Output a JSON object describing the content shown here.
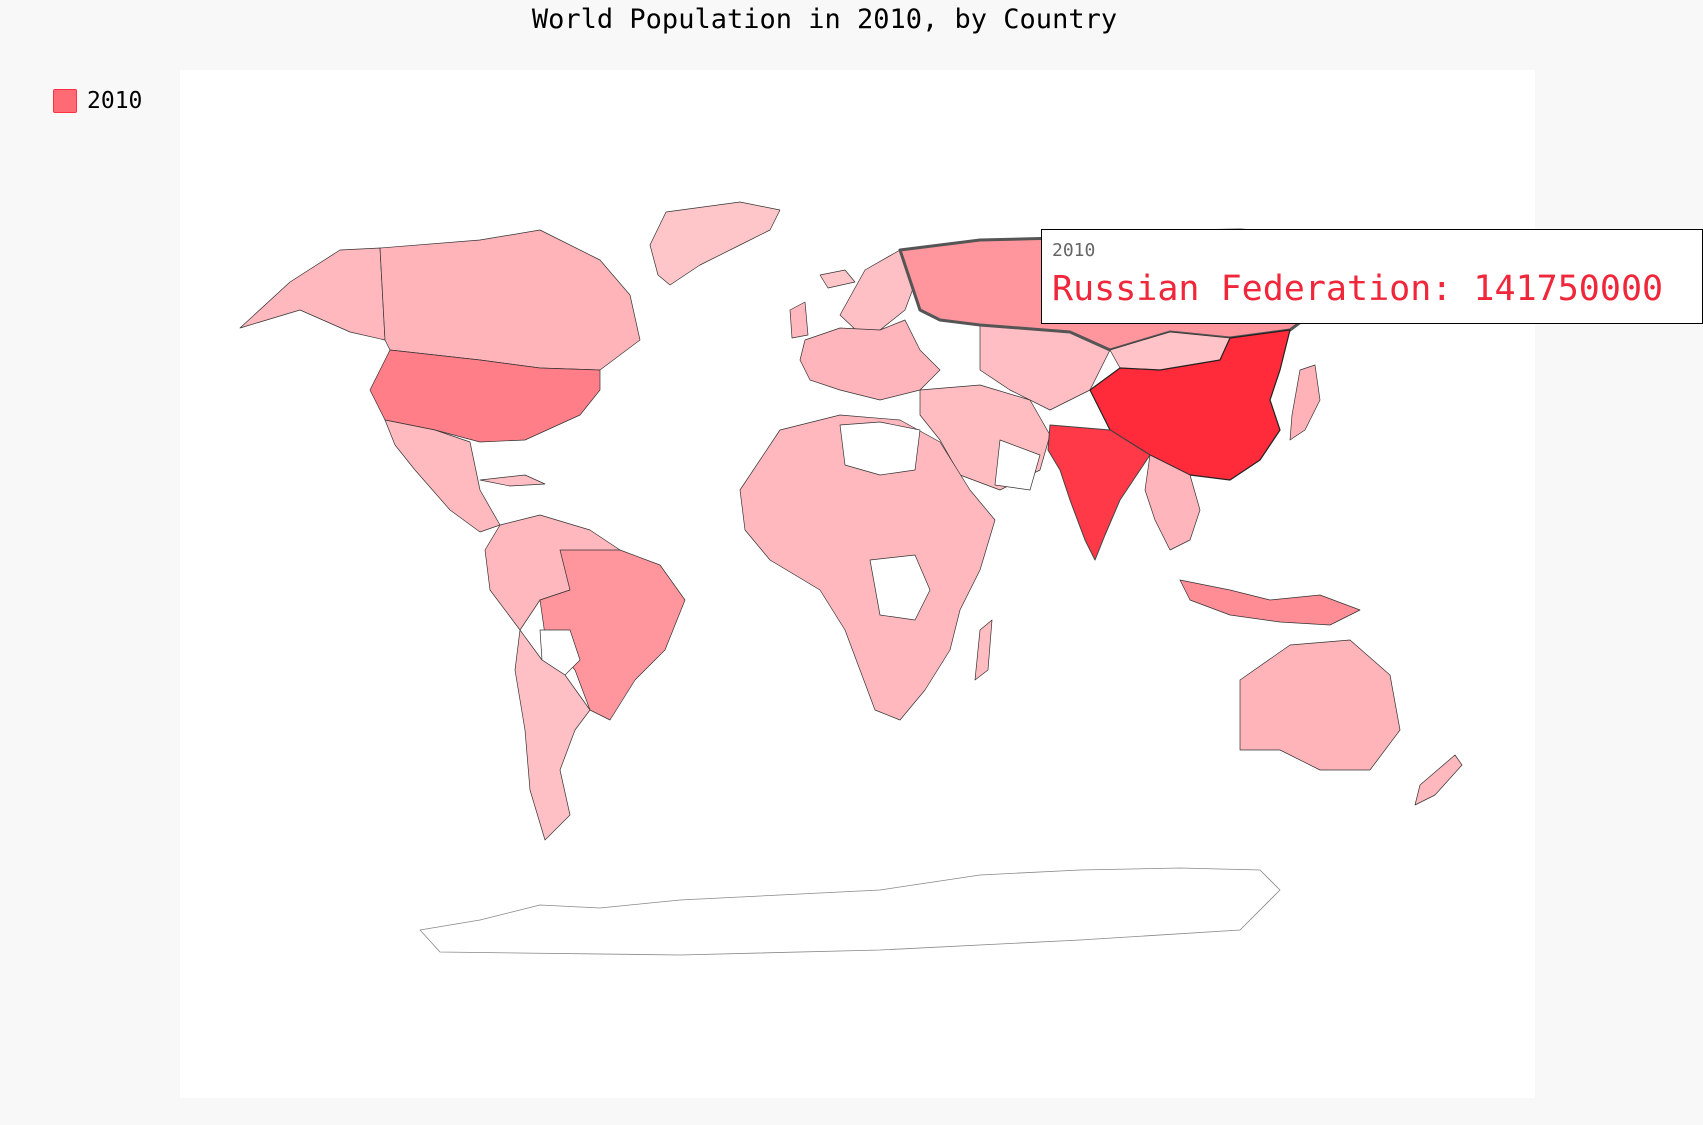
{
  "chart_data": {
    "type": "choropleth",
    "title": "World Population in 2010, by Country",
    "legend": {
      "entries": [
        "2010"
      ],
      "placement": "top-left"
    },
    "series_name": "2010",
    "colors": {
      "background": "#f8f8f8",
      "plot_background": "#ffffff",
      "legend_swatch": "#ff6b74",
      "no_data": "#ffffff",
      "tooltip_text": "#f0263a"
    },
    "scale": {
      "low_color": "#ffc3c8",
      "high_color": "#ff2a3a"
    },
    "countries": [
      {
        "name": "China",
        "level": 1.0
      },
      {
        "name": "India",
        "level": 0.9
      },
      {
        "name": "United States",
        "level": 0.45
      },
      {
        "name": "Russian Federation",
        "level": 0.3,
        "value": 141750000
      },
      {
        "name": "Brazil",
        "level": 0.3
      },
      {
        "name": "Indonesia",
        "level": 0.35
      },
      {
        "name": "Canada",
        "level": 0.1
      },
      {
        "name": "Australia",
        "level": 0.1
      }
    ],
    "tooltip": {
      "series": "2010",
      "text": "Russian Federation: 141750000"
    }
  }
}
